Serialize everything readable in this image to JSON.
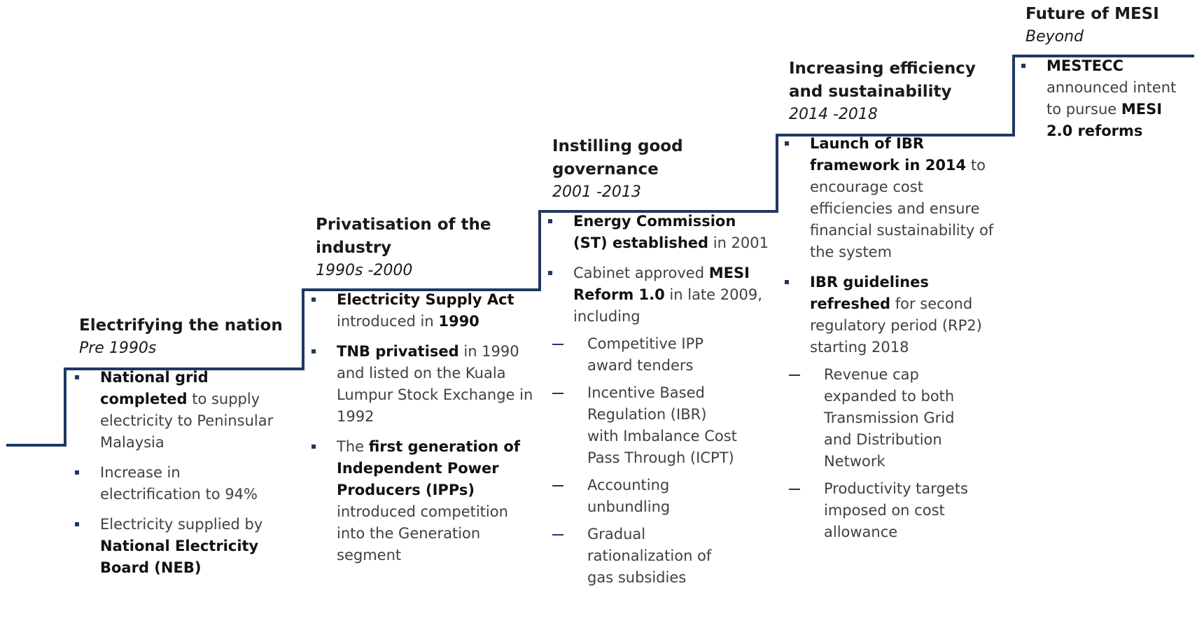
{
  "stages": [
    {
      "title": "Electrifying the nation",
      "period": "Pre 1990s",
      "bullets": [
        {
          "runs": [
            {
              "text": "National grid completed",
              "bold": true
            },
            {
              "text": " to supply electricity to Peninsular Malaysia",
              "bold": false
            }
          ]
        },
        {
          "runs": [
            {
              "text": "Increase in electrification to 94%",
              "bold": false
            }
          ]
        },
        {
          "runs": [
            {
              "text": "Electricity supplied by ",
              "bold": false
            },
            {
              "text": "National Electricity Board (NEB)",
              "bold": true
            }
          ]
        }
      ]
    },
    {
      "title": "Privatisation of the industry",
      "period": "1990s -2000",
      "bullets": [
        {
          "runs": [
            {
              "text": "Electricity Supply Act",
              "bold": true
            },
            {
              "text": " introduced in ",
              "bold": false
            },
            {
              "text": "1990",
              "bold": true
            }
          ]
        },
        {
          "runs": [
            {
              "text": "TNB privatised",
              "bold": true
            },
            {
              "text": " in 1990 and listed on the Kuala Lumpur Stock Exchange in 1992",
              "bold": false
            }
          ]
        },
        {
          "runs": [
            {
              "text": "The ",
              "bold": false
            },
            {
              "text": "first generation of Independent Power Producers (IPPs)",
              "bold": true
            },
            {
              "text": " introduced competition into the Generation segment",
              "bold": false
            }
          ]
        }
      ]
    },
    {
      "title": "Instilling good governance",
      "period": "2001 -2013",
      "bullets": [
        {
          "runs": [
            {
              "text": "Energy Commission (ST) established",
              "bold": true
            },
            {
              "text": " in 2001",
              "bold": false
            }
          ]
        },
        {
          "runs": [
            {
              "text": "Cabinet approved ",
              "bold": false
            },
            {
              "text": "MESI Reform 1.0",
              "bold": true
            },
            {
              "text": " in late 2009, including",
              "bold": false
            }
          ],
          "sub": [
            "Competitive IPP award tenders",
            "Incentive Based Regulation (IBR) with Imbalance Cost Pass Through (ICPT)",
            "Accounting unbundling",
            "Gradual rationalization of gas subsidies"
          ]
        }
      ]
    },
    {
      "title": "Increasing efficiency and sustainability",
      "period": "2014 -2018",
      "bullets": [
        {
          "runs": [
            {
              "text": "Launch of IBR framework in 2014",
              "bold": true
            },
            {
              "text": " to encourage cost efficiencies and ensure financial sustainability of the system",
              "bold": false
            }
          ]
        },
        {
          "runs": [
            {
              "text": "IBR guidelines refreshed",
              "bold": true
            },
            {
              "text": " for second regulatory period (RP2) starting 2018",
              "bold": false
            }
          ],
          "sub": [
            "Revenue cap expanded to both Transmission Grid and Distribution Network",
            "Productivity targets imposed on cost allowance"
          ]
        }
      ]
    },
    {
      "title": "Future of MESI",
      "period": "Beyond",
      "bullets": [
        {
          "runs": [
            {
              "text": "MESTECC",
              "bold": true
            },
            {
              "text": " announced intent to pursue ",
              "bold": false
            },
            {
              "text": "MESI 2.0 reforms",
              "bold": true
            }
          ]
        }
      ]
    }
  ]
}
